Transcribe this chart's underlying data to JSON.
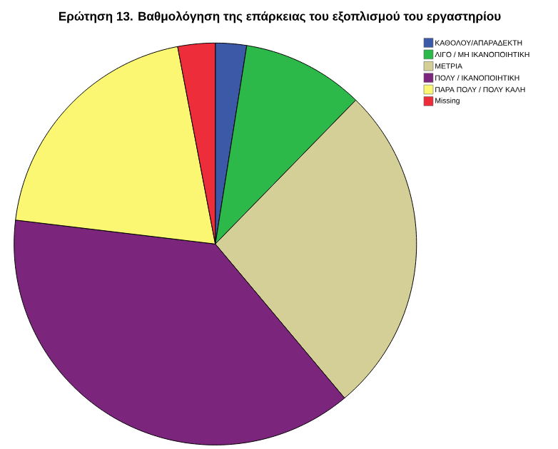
{
  "chart_data": {
    "type": "pie",
    "title": "Ερώτηση 13. Βαθμολόγηση της επάρκειας του εξοπλισμού του εργαστηρίου",
    "categories": [
      "ΚΑΘΟΛΟΥ/ΑΠΑΡΑΔΕΚΤΗ",
      "ΛΙΓΟ / ΜΗ ΙΚΑΝΟΠΟΙΗΤΙΚΗ",
      "ΜΕΤΡΙΑ",
      "ΠΟΛΥ / ΙΚΑΝΟΠΟΙΗΤΙΚΗ",
      "ΠΑΡΑ ΠΟΛΥ / ΠΟΛΥ ΚΑΛΗ",
      "Missing"
    ],
    "values": [
      2.5,
      9.8,
      26.6,
      38.0,
      20.1,
      3.0
    ],
    "colors": [
      "#3c59a8",
      "#2db84a",
      "#d3cf96",
      "#7b267c",
      "#fbf772",
      "#ee2d3a"
    ],
    "legend": "top right"
  }
}
